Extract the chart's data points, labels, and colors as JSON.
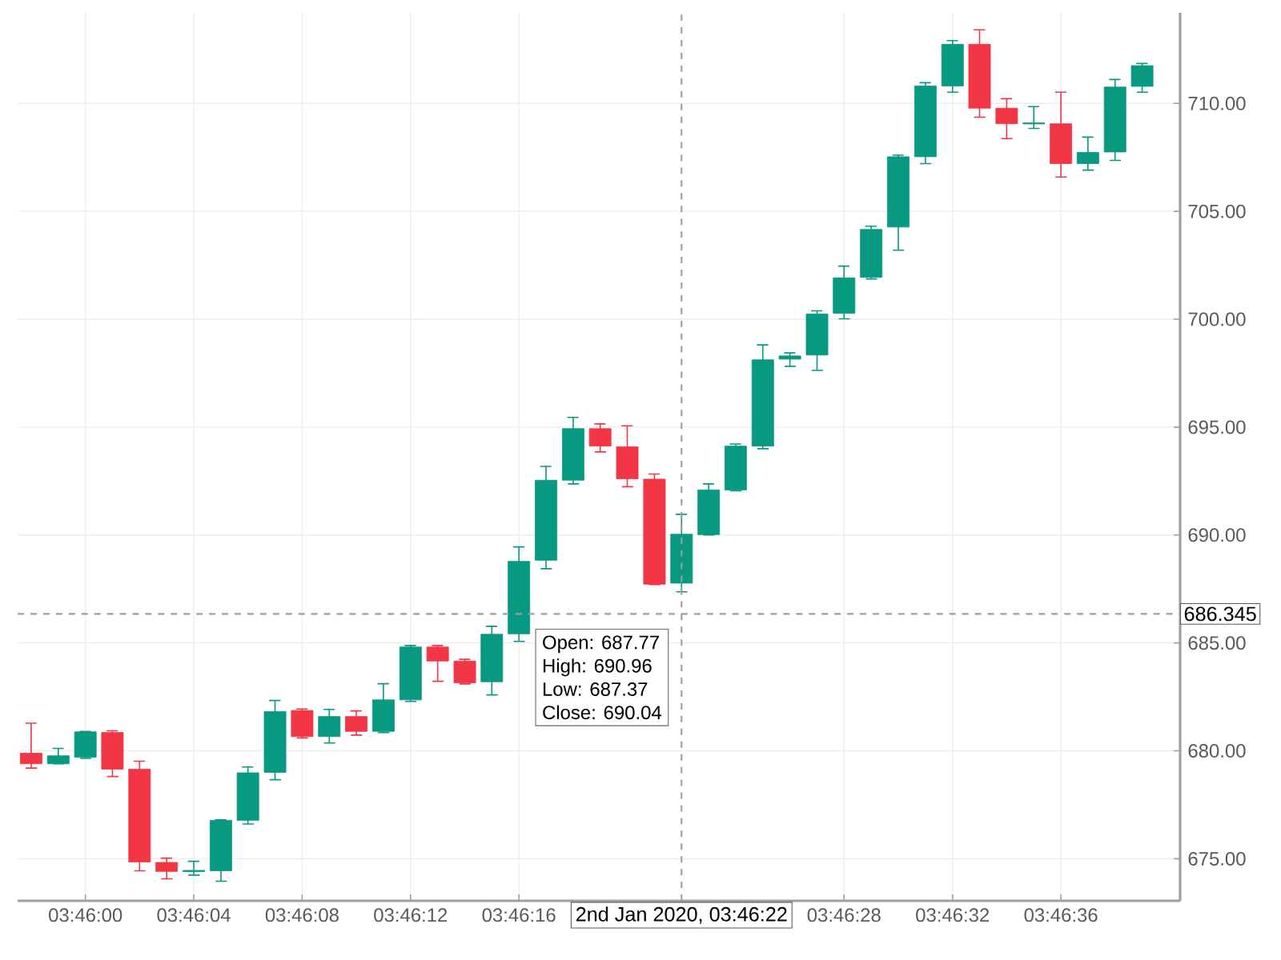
{
  "chart_data": {
    "type": "candlestick",
    "x": [
      3.766111,
      3.766389,
      3.766667,
      3.766944,
      3.767222,
      3.7675,
      3.767778,
      3.768056,
      3.768333,
      3.768611,
      3.768889,
      3.769167,
      3.769444,
      3.769722,
      3.77,
      3.770278,
      3.770556,
      3.770833,
      3.771111,
      3.771389,
      3.771667,
      3.771944,
      3.772222,
      3.7725,
      3.772778,
      3.773056,
      3.773333,
      3.773611,
      3.773889,
      3.774167,
      3.774444,
      3.774722,
      3.775,
      3.775278,
      3.775556,
      3.775833,
      3.776111,
      3.776389,
      3.776667,
      3.776944,
      3.777222,
      3.7775
    ],
    "ohlc": [
      [
        679.89,
        681.28,
        679.2,
        679.4
      ],
      [
        679.4,
        680.11,
        679.4,
        679.77
      ],
      [
        679.7,
        680.9,
        679.65,
        680.88
      ],
      [
        680.85,
        680.93,
        678.81,
        679.15
      ],
      [
        679.15,
        679.52,
        674.44,
        674.85
      ],
      [
        674.83,
        675.03,
        674.07,
        674.41
      ],
      [
        674.4,
        674.88,
        674.24,
        674.46
      ],
      [
        674.44,
        676.8,
        673.96,
        676.78
      ],
      [
        676.78,
        679.25,
        676.61,
        678.98
      ],
      [
        679.0,
        682.33,
        678.66,
        681.82
      ],
      [
        681.87,
        681.94,
        680.6,
        680.66
      ],
      [
        680.66,
        681.92,
        680.36,
        681.59
      ],
      [
        681.59,
        681.85,
        680.73,
        680.9
      ],
      [
        680.9,
        683.11,
        680.85,
        682.36
      ],
      [
        682.36,
        684.88,
        682.29,
        684.81
      ],
      [
        684.81,
        684.88,
        683.22,
        684.16
      ],
      [
        684.16,
        684.24,
        683.1,
        683.15
      ],
      [
        683.2,
        685.77,
        682.59,
        685.4
      ],
      [
        685.42,
        689.45,
        685.07,
        688.78
      ],
      [
        688.83,
        693.18,
        688.44,
        692.54
      ],
      [
        692.54,
        695.45,
        692.37,
        694.93
      ],
      [
        694.93,
        695.15,
        693.85,
        694.12
      ],
      [
        694.09,
        695.06,
        692.24,
        692.61
      ],
      [
        692.59,
        692.83,
        687.7,
        687.72
      ],
      [
        687.77,
        690.96,
        687.37,
        690.04
      ],
      [
        690.02,
        692.37,
        690.0,
        692.09
      ],
      [
        692.09,
        694.22,
        692.05,
        694.12
      ],
      [
        694.12,
        698.81,
        694.0,
        698.12
      ],
      [
        698.15,
        698.44,
        697.82,
        698.3
      ],
      [
        698.34,
        700.39,
        697.63,
        700.24
      ],
      [
        700.27,
        702.46,
        700.02,
        701.92
      ],
      [
        701.94,
        704.31,
        701.87,
        704.16
      ],
      [
        704.27,
        707.6,
        703.2,
        707.53
      ],
      [
        707.53,
        710.96,
        707.21,
        710.81
      ],
      [
        710.81,
        712.91,
        710.52,
        712.74
      ],
      [
        712.74,
        713.41,
        709.36,
        709.78
      ],
      [
        709.78,
        710.22,
        708.37,
        709.06
      ],
      [
        709.05,
        709.85,
        708.84,
        709.1
      ],
      [
        709.06,
        710.52,
        706.59,
        707.21
      ],
      [
        707.21,
        708.44,
        706.91,
        707.73
      ],
      [
        707.75,
        711.11,
        707.36,
        710.76
      ],
      [
        710.79,
        711.85,
        710.52,
        711.75
      ]
    ],
    "colors": [
      "#f23645",
      "#089981",
      "#089981",
      "#f23645",
      "#f23645",
      "#f23645",
      "#089981",
      "#089981",
      "#089981",
      "#089981",
      "#f23645",
      "#089981",
      "#f23645",
      "#089981",
      "#089981",
      "#f23645",
      "#f23645",
      "#089981",
      "#089981",
      "#089981",
      "#089981",
      "#f23645",
      "#f23645",
      "#f23645",
      "#089981",
      "#089981",
      "#089981",
      "#089981",
      "#089981",
      "#089981",
      "#089981",
      "#089981",
      "#089981",
      "#089981",
      "#089981",
      "#f23645",
      "#f23645",
      "#089981",
      "#f23645",
      "#089981",
      "#089981",
      "#089981"
    ],
    "xlim": [
      3.765972,
      3.777889
    ],
    "xticks": [
      {
        "value": 3.766667,
        "label": "03:46:00"
      },
      {
        "value": 3.767778,
        "label": "03:46:04"
      },
      {
        "value": 3.768889,
        "label": "03:46:08"
      },
      {
        "value": 3.77,
        "label": "03:46:12"
      },
      {
        "value": 3.771111,
        "label": "03:46:16"
      },
      {
        "value": 3.774444,
        "label": "03:46:28"
      },
      {
        "value": 3.775556,
        "label": "03:46:32"
      },
      {
        "value": 3.776667,
        "label": "03:46:36"
      }
    ],
    "ylim": [
      673.05,
      714.2
    ],
    "yticks": [
      {
        "value": 675,
        "label": "675.00"
      },
      {
        "value": 680,
        "label": "680.00"
      },
      {
        "value": 685,
        "label": "685.00"
      },
      {
        "value": 690,
        "label": "690.00"
      },
      {
        "value": 695,
        "label": "695.00"
      },
      {
        "value": 700,
        "label": "700.00"
      },
      {
        "value": 705,
        "label": "705.00"
      },
      {
        "value": 710,
        "label": "710.00"
      }
    ],
    "grid": true,
    "ref_lines": [
      {
        "axis": "x",
        "value": 3.772778,
        "color": "#9e9e9e",
        "line_style": "dashed"
      },
      {
        "axis": "y",
        "value": 686.345,
        "color": "#9e9e9e",
        "line_style": "dashed"
      }
    ],
    "annotations": [
      "Open: 687.77",
      "High: 690.96",
      "Low: 687.37",
      "Close: 690.04",
      "2nd Jan 2020, 03:46:22",
      "686.345"
    ]
  }
}
